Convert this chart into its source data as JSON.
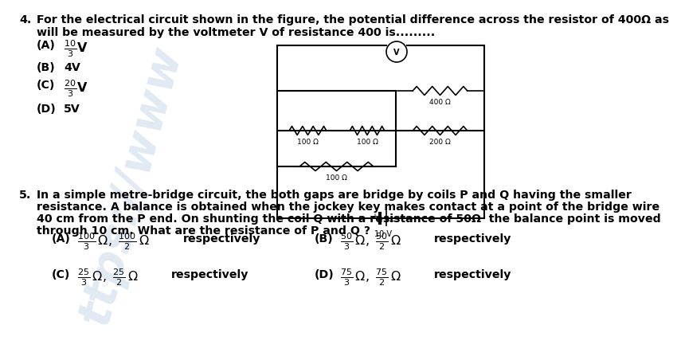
{
  "background_color": "#ffffff",
  "q4_num": "4.",
  "q4_line1": "For the electrical circuit shown in the figure, the potential difference across the resistor of 400Ω as",
  "q4_line2": "will be measured by the voltmeter V of resistance 400 is.........",
  "q4_opts": [
    {
      "label": "(A)",
      "math": "\\frac{10}{3}",
      "unit": "V"
    },
    {
      "label": "(B)",
      "plain": "4V"
    },
    {
      "label": "(C)",
      "math": "\\frac{20}{3}",
      "unit": "V"
    },
    {
      "label": "(D)",
      "plain": "5V"
    }
  ],
  "q5_num": "5.",
  "q5_line1": "In a simple metre-bridge circuit, the both gaps are bridge by coils P and Q having the smaller",
  "q5_line2": "resistance. A balance is obtained when the jockey key makes contact at a point of the bridge wire",
  "q5_line3": "40 cm from the P end. On shunting the coil Q with a resistance of 50Ω  the balance point is moved",
  "q5_line4": "through 10 cm. What are the resistance of P and Q ?",
  "q5_A": "\\frac{100}{3}\\,\\Omega,\\ \\frac{100}{2}\\,\\Omega",
  "q5_B": "\\frac{50}{3}\\,\\Omega,\\ \\frac{50}{2}\\,\\Omega",
  "q5_C": "\\frac{25}{3}\\,\\Omega,\\ \\frac{25}{2}\\,\\Omega",
  "q5_D": "\\frac{75}{3}\\,\\Omega,\\ \\frac{75}{2}\\,\\Omega",
  "respectively": "respectively",
  "font_body": 10.2,
  "font_option": 10.5
}
